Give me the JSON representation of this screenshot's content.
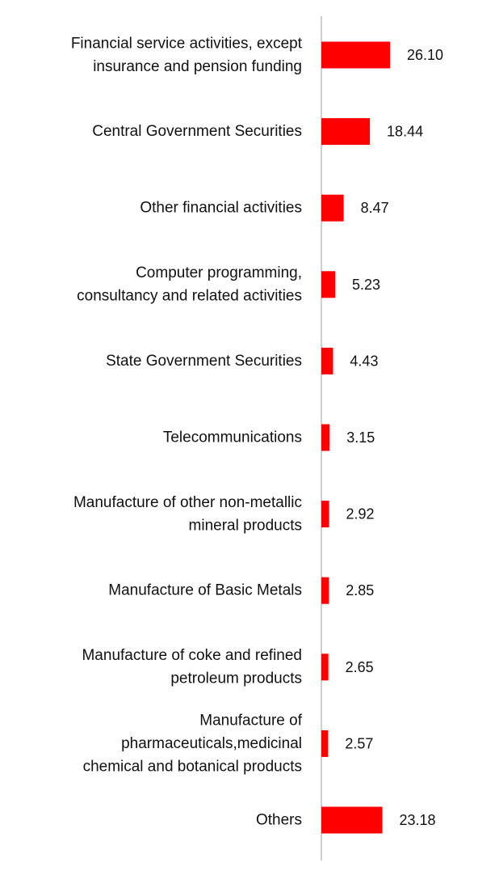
{
  "chart_data": {
    "type": "bar",
    "orientation": "horizontal",
    "categories": [
      "Financial service activities, except insurance and pension funding",
      "Central Government Securities",
      "Other financial activities",
      "Computer programming, consultancy and related activities",
      "State Government Securities",
      "Telecommunications",
      "Manufacture of other non-metallic mineral products",
      "Manufacture of Basic Metals",
      "Manufacture of coke and refined petroleum products",
      "Manufacture of pharmaceuticals,medicinal chemical and botanical products",
      "Others"
    ],
    "category_lines": [
      [
        "Financial service activities, except",
        "insurance and pension funding"
      ],
      [
        "Central Government Securities"
      ],
      [
        "Other financial activities"
      ],
      [
        "Computer programming,",
        "consultancy and related activities"
      ],
      [
        "State Government Securities"
      ],
      [
        "Telecommunications"
      ],
      [
        "Manufacture of other non-metallic",
        "mineral products"
      ],
      [
        "Manufacture of Basic Metals"
      ],
      [
        "Manufacture of coke and refined",
        "petroleum products"
      ],
      [
        "Manufacture of",
        "pharmaceuticals,medicinal",
        "chemical and botanical products"
      ],
      [
        "Others"
      ]
    ],
    "values": [
      26.1,
      18.44,
      8.47,
      5.23,
      4.43,
      3.15,
      2.92,
      2.85,
      2.65,
      2.57,
      23.18
    ],
    "value_labels": [
      "26.10",
      "18.44",
      "8.47",
      "5.23",
      "4.43",
      "3.15",
      "2.92",
      "2.85",
      "2.65",
      "2.57",
      "23.18"
    ],
    "title": "",
    "xlabel": "",
    "ylabel": "",
    "xlim": [
      0,
      60
    ],
    "grid": false,
    "legend": "none",
    "colors": {
      "bar": "#ff0000",
      "axis": "#d0d0d0",
      "text": "#111111"
    }
  }
}
